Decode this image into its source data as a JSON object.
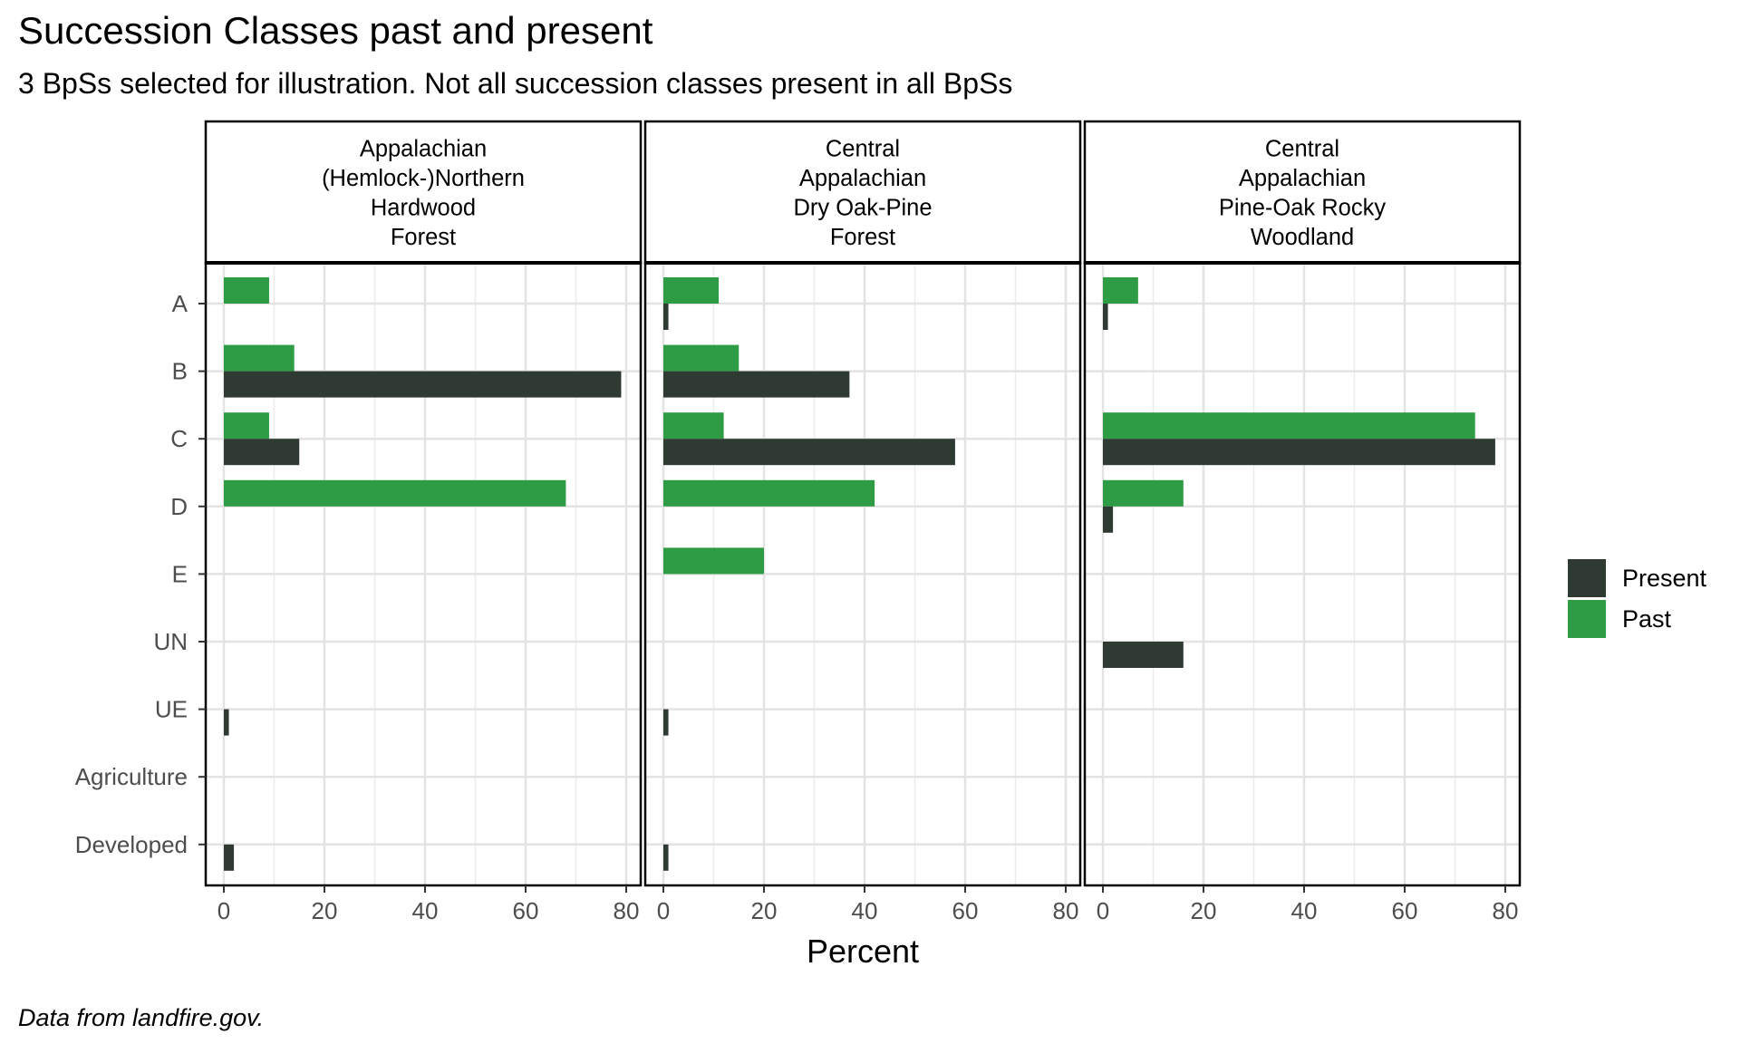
{
  "title": "Succession Classes past and present",
  "subtitle": "3 BpSs selected for illustration. Not all succession classes present in all BpSs",
  "caption": "Data from landfire.gov.",
  "chart_data": {
    "type": "bar",
    "orientation": "horizontal",
    "xlabel": "Percent",
    "xlim": [
      0,
      80
    ],
    "xticks": [
      "0",
      "20",
      "40",
      "60",
      "80"
    ],
    "categories": [
      "A",
      "B",
      "C",
      "D",
      "E",
      "UN",
      "UE",
      "Agriculture",
      "Developed"
    ],
    "legend": {
      "position": "right",
      "entries": [
        {
          "name": "Present",
          "color": "#2f3a33"
        },
        {
          "name": "Past",
          "color": "#2e9c44"
        }
      ]
    },
    "grid": true,
    "panels": [
      {
        "title_lines": [
          "Appalachian",
          "(Hemlock-)Northern",
          "Hardwood",
          "Forest"
        ],
        "series": [
          {
            "name": "Past",
            "values": [
              9,
              14,
              9,
              68,
              0,
              0,
              0,
              0,
              0
            ]
          },
          {
            "name": "Present",
            "values": [
              0,
              79,
              15,
              0,
              0,
              0,
              1,
              0,
              2
            ]
          }
        ]
      },
      {
        "title_lines": [
          "Central",
          "Appalachian",
          "Dry Oak-Pine",
          "Forest"
        ],
        "series": [
          {
            "name": "Past",
            "values": [
              11,
              15,
              12,
              42,
              20,
              0,
              0,
              0,
              0
            ]
          },
          {
            "name": "Present",
            "values": [
              1,
              37,
              58,
              0,
              0,
              0,
              1,
              0,
              1
            ]
          }
        ]
      },
      {
        "title_lines": [
          "Central",
          "Appalachian",
          "Pine-Oak Rocky",
          "Woodland"
        ],
        "series": [
          {
            "name": "Past",
            "values": [
              7,
              0,
              74,
              16,
              0,
              0,
              0,
              0,
              0
            ]
          },
          {
            "name": "Present",
            "values": [
              1,
              0,
              78,
              2,
              0,
              16,
              0,
              0,
              0
            ]
          }
        ]
      }
    ]
  }
}
